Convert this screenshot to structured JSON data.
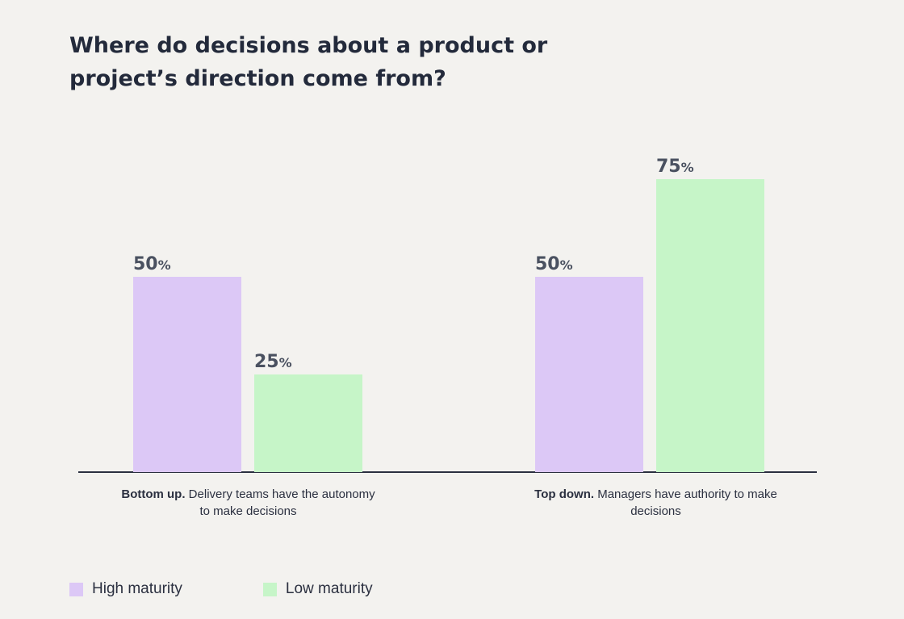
{
  "chart_data": {
    "type": "bar",
    "title": "Where do decisions about a product or project’s direction come from?",
    "categories": [
      {
        "bold": "Bottom up.",
        "text": " Delivery teams have the autonomy to make decisions"
      },
      {
        "bold": "Top down.",
        "text": " Managers have authority to make decisions"
      }
    ],
    "series": [
      {
        "name": "High maturity",
        "color": "#dcc8f6",
        "values": [
          50,
          50
        ]
      },
      {
        "name": "Low maturity",
        "color": "#c6f5c8",
        "values": [
          25,
          75
        ]
      }
    ],
    "value_suffix": "%",
    "ylim": [
      0,
      100
    ],
    "grid": false,
    "legend_position": "bottom-left"
  }
}
